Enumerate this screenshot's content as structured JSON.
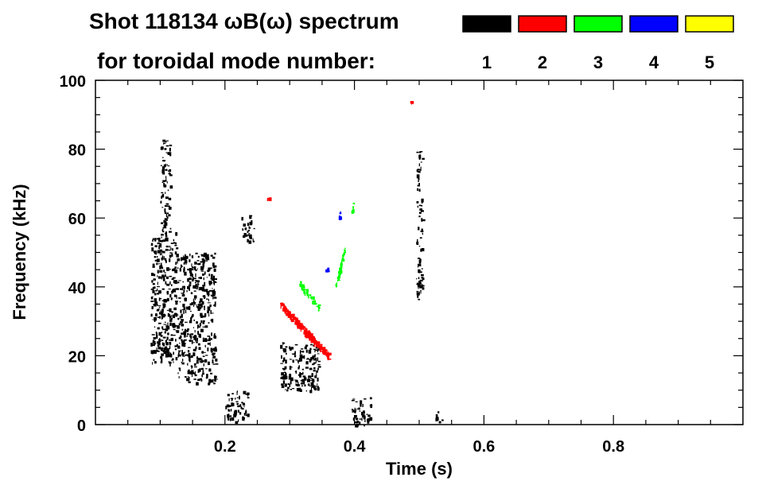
{
  "chart_data": {
    "type": "heatmap",
    "title": "Shot 118134 ωB(ω) spectrum",
    "subtitle": "for toroidal mode number:",
    "xlabel": "Time (s)",
    "ylabel": "Frequency (kHz)",
    "xlim": [
      0.0,
      1.0
    ],
    "ylim": [
      0,
      100
    ],
    "x_ticks": [
      0.2,
      0.4,
      0.6,
      0.8
    ],
    "y_ticks": [
      0,
      20,
      40,
      60,
      80,
      100
    ],
    "legend": [
      {
        "label": "1",
        "color": "#000000"
      },
      {
        "label": "2",
        "color": "#ff0000"
      },
      {
        "label": "3",
        "color": "#00ff00"
      },
      {
        "label": "4",
        "color": "#0000ff"
      },
      {
        "label": "5",
        "color": "#ffff00"
      }
    ],
    "features": [
      {
        "mode": 1,
        "t": [
          0.085,
          0.125
        ],
        "f": [
          18,
          56
        ]
      },
      {
        "mode": 1,
        "t": [
          0.1,
          0.115
        ],
        "f": [
          56,
          83
        ]
      },
      {
        "mode": 1,
        "t": [
          0.125,
          0.185
        ],
        "f": [
          12,
          50
        ]
      },
      {
        "mode": 1,
        "t": [
          0.225,
          0.245
        ],
        "f": [
          53,
          61
        ]
      },
      {
        "mode": 1,
        "t": [
          0.2,
          0.235
        ],
        "f": [
          1,
          10
        ]
      },
      {
        "mode": 1,
        "t": [
          0.285,
          0.345
        ],
        "f": [
          10,
          24
        ]
      },
      {
        "mode": 1,
        "t": [
          0.395,
          0.425
        ],
        "f": [
          0,
          8
        ]
      },
      {
        "mode": 1,
        "t": [
          0.495,
          0.505
        ],
        "f": [
          36,
          80
        ]
      },
      {
        "mode": 1,
        "t": [
          0.525,
          0.535
        ],
        "f": [
          1,
          4
        ]
      },
      {
        "mode": 2,
        "t": [
          0.285,
          0.36
        ],
        "f": [
          35,
          20
        ]
      },
      {
        "mode": 2,
        "t": [
          0.265,
          0.268
        ],
        "f": [
          66,
          66
        ]
      },
      {
        "mode": 2,
        "t": [
          0.485,
          0.488
        ],
        "f": [
          94,
          94
        ]
      },
      {
        "mode": 3,
        "t": [
          0.315,
          0.345
        ],
        "f": [
          41,
          34
        ]
      },
      {
        "mode": 3,
        "t": [
          0.37,
          0.385
        ],
        "f": [
          40,
          52
        ]
      },
      {
        "mode": 3,
        "t": [
          0.395,
          0.398
        ],
        "f": [
          61,
          65
        ]
      },
      {
        "mode": 4,
        "t": [
          0.375,
          0.378
        ],
        "f": [
          60,
          62
        ]
      },
      {
        "mode": 4,
        "t": [
          0.355,
          0.358
        ],
        "f": [
          44,
          46
        ]
      }
    ]
  }
}
